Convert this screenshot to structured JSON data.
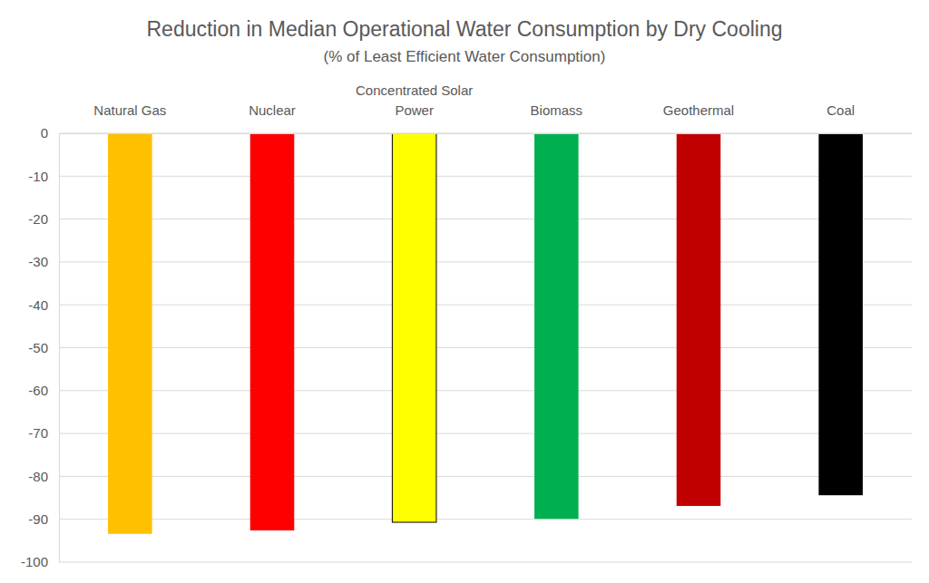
{
  "chart_data": {
    "type": "bar",
    "title": "Reduction in Median Operational Water Consumption by Dry Cooling",
    "subtitle": "(% of Least Efficient Water Consumption)",
    "categories": [
      "Natural Gas",
      "Nuclear",
      "Concentrated Solar Power",
      "Biomass",
      "Geothermal",
      "Coal"
    ],
    "values": [
      -93.4,
      -92.6,
      -90.7,
      -89.9,
      -86.9,
      -84.4
    ],
    "colors": [
      "#ffc000",
      "#ff0000",
      "#ffff00",
      "#00b050",
      "#c00000",
      "#000000"
    ],
    "ylim": [
      -100,
      0
    ],
    "yticks": [
      0,
      -10,
      -20,
      -30,
      -40,
      -50,
      -60,
      -70,
      -80,
      -90,
      -100
    ],
    "grid": true
  }
}
